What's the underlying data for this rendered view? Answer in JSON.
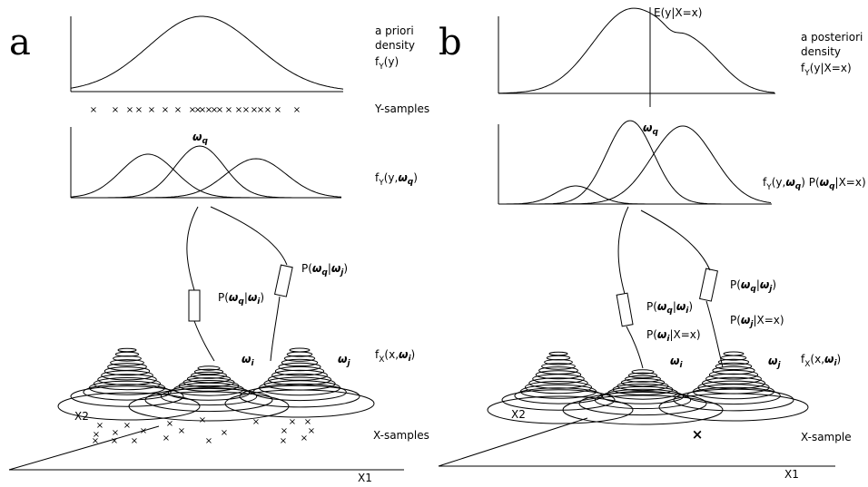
{
  "panel_a": {
    "letter": "a",
    "prior_label": [
      "a priori",
      "density"
    ],
    "prior_fn": {
      "f": "f",
      "sub": "Y",
      "rest": "(y)"
    },
    "y_samples_label": "Y-samples",
    "mix_label": {
      "f": "f",
      "sub": "Y",
      "args": "(y,",
      "omega": "ω",
      "osub": "q",
      "close": ")"
    },
    "omega_q": {
      "omega": "ω",
      "sub": "q"
    },
    "p_qi": {
      "pre": "P(",
      "omega1": "ω",
      "sub1": "q",
      "bar": "|",
      "omega2": "ω",
      "sub2": "i",
      "close": ")"
    },
    "p_qj": {
      "pre": "P(",
      "omega1": "ω",
      "sub1": "q",
      "bar": "|",
      "omega2": "ω",
      "sub2": "j",
      "close": ")"
    },
    "fx_label": {
      "f": "f",
      "sub": "X",
      "args": "(x,",
      "omega": "ω",
      "osub": "i",
      "close": ")"
    },
    "omega_i": {
      "omega": "ω",
      "sub": "i"
    },
    "omega_j": {
      "omega": "ω",
      "sub": "j"
    },
    "x2": "X2",
    "x1": "X1",
    "x_samples_label": "X-samples",
    "sample_marker": "×"
  },
  "panel_b": {
    "letter": "b",
    "expectation_label": "E(y|X=x)",
    "posterior_label": [
      "a posteriori",
      "density"
    ],
    "posterior_fn": {
      "f": "f",
      "sub": "Y",
      "rest": "(y|X=x)"
    },
    "mix_label": {
      "f": "f",
      "sub": "Y",
      "args": "(y,",
      "omega": "ω",
      "osub": "q",
      "mid": ") P(",
      "omega2": "ω",
      "osub2": "q",
      "close": "|X=x)"
    },
    "omega_q": {
      "omega": "ω",
      "sub": "q"
    },
    "p_qi": {
      "pre": "P(",
      "omega1": "ω",
      "sub1": "q",
      "bar": "|",
      "omega2": "ω",
      "sub2": "i",
      "close": ")"
    },
    "p_qj": {
      "pre": "P(",
      "omega1": "ω",
      "sub1": "q",
      "bar": "|",
      "omega2": "ω",
      "sub2": "j",
      "close": ")"
    },
    "p_i_x": {
      "pre": "P(",
      "omega": "ω",
      "sub": "i",
      "close": "|X=x)"
    },
    "p_j_x": {
      "pre": "P(",
      "omega": "ω",
      "sub": "j",
      "close": "|X=x)"
    },
    "fx_label": {
      "f": "f",
      "sub": "X",
      "args": "(x,",
      "omega": "ω",
      "osub": "i",
      "close": ")"
    },
    "omega_i": {
      "omega": "ω",
      "sub": "i"
    },
    "omega_j": {
      "omega": "ω",
      "sub": "j"
    },
    "x2": "X2",
    "x1": "X1",
    "x_sample_label": "X-sample",
    "sample_marker": "×"
  }
}
